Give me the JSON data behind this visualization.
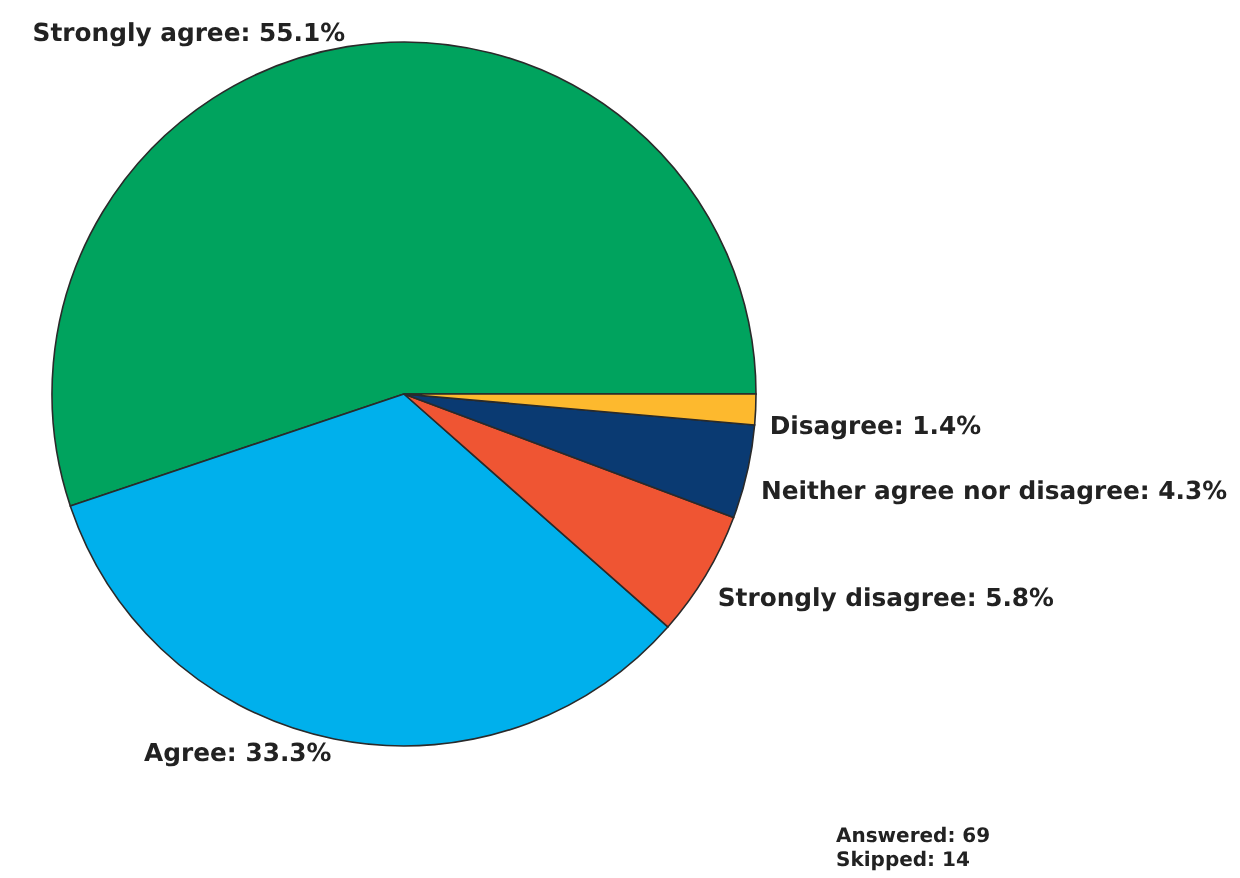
{
  "chart_data": {
    "type": "pie",
    "categories": [
      "Strongly agree",
      "Agree",
      "Strongly disagree",
      "Neither agree nor disagree",
      "Disagree"
    ],
    "values": [
      55.1,
      33.3,
      5.8,
      4.3,
      1.4
    ],
    "colors": [
      "#00a35e",
      "#00b0ec",
      "#ef5533",
      "#0a3a72",
      "#fdb92e"
    ],
    "value_labels": [
      "55.1%",
      "33.3%",
      "5.8%",
      "4.3%",
      "1.4%"
    ],
    "annotations": [
      "Answered: 69",
      "Skipped: 14"
    ]
  }
}
